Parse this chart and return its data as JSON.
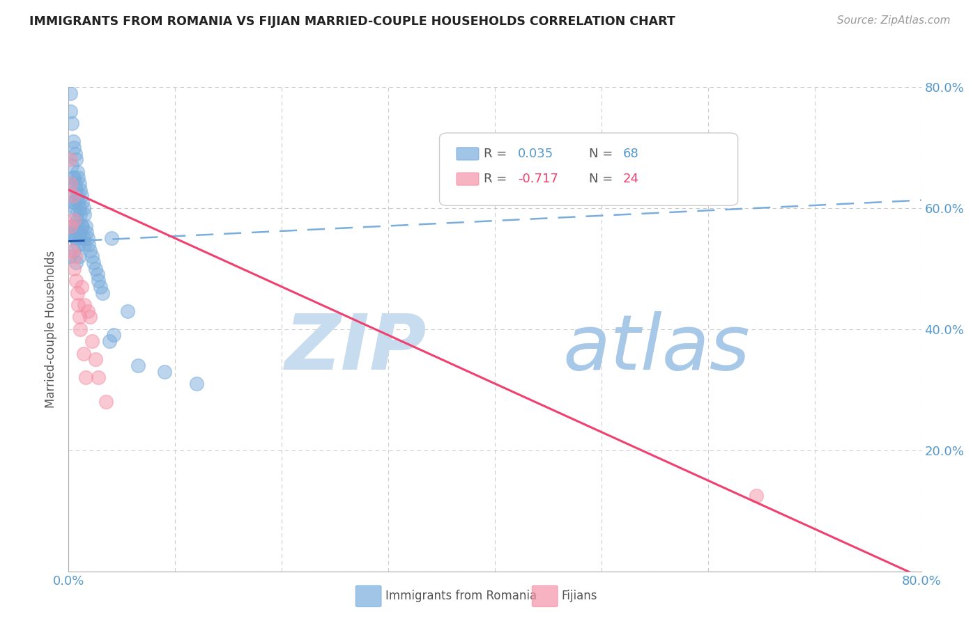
{
  "title": "IMMIGRANTS FROM ROMANIA VS FIJIAN MARRIED-COUPLE HOUSEHOLDS CORRELATION CHART",
  "source": "Source: ZipAtlas.com",
  "ylabel": "Married-couple Households",
  "xmin": 0.0,
  "xmax": 0.8,
  "ymin": 0.0,
  "ymax": 0.8,
  "legend_r1": "R = 0.035",
  "legend_n1": "N = 68",
  "legend_r2": "R = -0.717",
  "legend_n2": "N = 24",
  "label1": "Immigrants from Romania",
  "label2": "Fijians",
  "color1": "#7aaddc",
  "color2": "#f593a8",
  "trend1_solid_color": "#2255aa",
  "trend1_dash_color": "#7aaddc",
  "trend2_color": "#f04070",
  "watermark_zip_color": "#c8dcf0",
  "watermark_atlas_color": "#a8c8e8",
  "background_color": "#ffffff",
  "grid_color": "#cccccc",
  "tick_label_color": "#5599cc",
  "title_color": "#222222",
  "romania_x": [
    0.001,
    0.001,
    0.002,
    0.002,
    0.002,
    0.003,
    0.003,
    0.003,
    0.003,
    0.004,
    0.004,
    0.004,
    0.004,
    0.005,
    0.005,
    0.005,
    0.005,
    0.005,
    0.006,
    0.006,
    0.006,
    0.006,
    0.007,
    0.007,
    0.007,
    0.007,
    0.007,
    0.008,
    0.008,
    0.008,
    0.008,
    0.009,
    0.009,
    0.009,
    0.01,
    0.01,
    0.01,
    0.01,
    0.011,
    0.011,
    0.011,
    0.012,
    0.012,
    0.013,
    0.013,
    0.014,
    0.014,
    0.015,
    0.015,
    0.016,
    0.017,
    0.018,
    0.019,
    0.02,
    0.022,
    0.023,
    0.025,
    0.027,
    0.028,
    0.03,
    0.032,
    0.038,
    0.04,
    0.042,
    0.055,
    0.065,
    0.09,
    0.12
  ],
  "romania_y": [
    0.56,
    0.52,
    0.79,
    0.76,
    0.64,
    0.74,
    0.67,
    0.62,
    0.57,
    0.71,
    0.65,
    0.61,
    0.56,
    0.7,
    0.65,
    0.61,
    0.57,
    0.53,
    0.69,
    0.64,
    0.6,
    0.55,
    0.68,
    0.63,
    0.59,
    0.55,
    0.51,
    0.66,
    0.62,
    0.58,
    0.54,
    0.65,
    0.61,
    0.57,
    0.64,
    0.6,
    0.56,
    0.52,
    0.63,
    0.59,
    0.55,
    0.62,
    0.57,
    0.61,
    0.57,
    0.6,
    0.55,
    0.59,
    0.54,
    0.57,
    0.56,
    0.55,
    0.54,
    0.53,
    0.52,
    0.51,
    0.5,
    0.49,
    0.48,
    0.47,
    0.46,
    0.38,
    0.55,
    0.39,
    0.43,
    0.34,
    0.33,
    0.31
  ],
  "fijian_x": [
    0.001,
    0.002,
    0.002,
    0.003,
    0.004,
    0.005,
    0.005,
    0.006,
    0.007,
    0.008,
    0.009,
    0.01,
    0.011,
    0.012,
    0.014,
    0.015,
    0.016,
    0.018,
    0.02,
    0.022,
    0.025,
    0.028,
    0.035,
    0.645
  ],
  "fijian_y": [
    0.68,
    0.64,
    0.57,
    0.53,
    0.62,
    0.58,
    0.5,
    0.52,
    0.48,
    0.46,
    0.44,
    0.42,
    0.4,
    0.47,
    0.36,
    0.44,
    0.32,
    0.43,
    0.42,
    0.38,
    0.35,
    0.32,
    0.28,
    0.125
  ],
  "romania_trend_x0": 0.0,
  "romania_trend_x_solid_end": 0.015,
  "romania_trend_xmax": 0.8,
  "romania_trend_y_at_0": 0.545,
  "romania_trend_slope": 0.085,
  "fijian_trend_x0": 0.0,
  "fijian_trend_xmax": 0.8,
  "fijian_trend_y_at_0": 0.63,
  "fijian_trend_slope": -0.8
}
